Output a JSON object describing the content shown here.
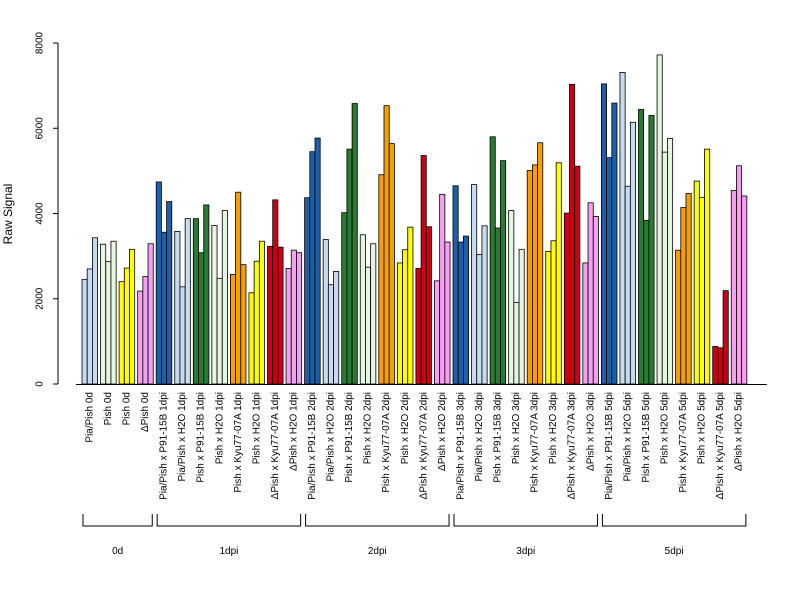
{
  "chart_data": {
    "type": "bar",
    "ylabel": "Raw Signal",
    "xlabel": "",
    "ylim": [
      0,
      8000
    ],
    "yticks": [
      0,
      2000,
      4000,
      6000,
      8000
    ],
    "grid": false,
    "categories": [
      "Pia/Pish 0d",
      "Pish 0d",
      "Pish 0d",
      "ΔPish 0d",
      "Pia/Pish x P91-15B 1dpi",
      "Pia/Pish x H2O 1dpi",
      "Pish x P91-15B 1dpi",
      "Pish x H2O 1dpi",
      "Pish x Kyu77-07A 1dpi",
      "Pish x H2O 1dpi",
      "ΔPish x Kyu77-07A 1dpi",
      "ΔPish x H2O 1dpi",
      "Pia/Pish x P91-15B 2dpi",
      "Pia/Pish x H2O 2dpi",
      "Pish x P91-15B 2dpi",
      "Pish x H2O 2dpi",
      "Pish x Kyu77-07A 2dpi",
      "Pish x H2O 2dpi",
      "ΔPish x Kyu77-07A 2dpi",
      "ΔPish x H2O 2dpi",
      "Pia/Pish x P91-15B 3dpi",
      "Pia/Pish x H2O 3dpi",
      "Pish x P91-15B 3dpi",
      "Pish x H2O 3dpi",
      "Pish x Kyu77-07A 3dpi",
      "Pish x H2O 3dpi",
      "ΔPish x Kyu77-07A 3dpi",
      "ΔPish x H2O 3dpi",
      "Pia/Pish x P91-15B 5dpi",
      "Pia/Pish x H2O 5dpi",
      "Pish x P91-15B 5dpi",
      "Pish x H2O 5dpi",
      "Pish x Kyu77-07A 5dpi",
      "Pish x H2O 5dpi",
      "ΔPish x Kyu77-07A 5dpi",
      "ΔPish x H2O 5dpi"
    ],
    "colors": [
      "#c6dbef",
      "#e5f5e0",
      "#ffff00",
      "#f4a0f0",
      "#1f5fa8",
      "#c6dbef",
      "#2a7a32",
      "#e5f5e0",
      "#f5a000",
      "#ffff00",
      "#cc0015",
      "#f4a0f0",
      "#1f5fa8",
      "#c6dbef",
      "#2a7a32",
      "#e5f5e0",
      "#f5a000",
      "#ffff00",
      "#cc0015",
      "#f4a0f0",
      "#1f5fa8",
      "#c6dbef",
      "#2a7a32",
      "#e5f5e0",
      "#f5a000",
      "#ffff00",
      "#cc0015",
      "#f4a0f0",
      "#1f5fa8",
      "#c6dbef",
      "#2a7a32",
      "#e5f5e0",
      "#f5a000",
      "#ffff00",
      "#cc0015",
      "#f4a0f0"
    ],
    "values": [
      [
        2450,
        2700,
        3430
      ],
      [
        3280,
        2870,
        3350
      ],
      [
        2400,
        2720,
        3160
      ],
      [
        2180,
        2520,
        3290
      ],
      [
        4740,
        3560,
        4280
      ],
      [
        3580,
        2280,
        3880
      ],
      [
        3880,
        3080,
        4200
      ],
      [
        3720,
        2480,
        4070
      ],
      [
        2570,
        4500,
        2800
      ],
      [
        2140,
        2880,
        3350
      ],
      [
        3230,
        4320,
        3210
      ],
      [
        2710,
        3140,
        3080
      ],
      [
        4370,
        5450,
        5770
      ],
      [
        3390,
        2330,
        2640
      ],
      [
        4020,
        5510,
        6580
      ],
      [
        3500,
        2740,
        3290
      ],
      [
        4910,
        6530,
        5640
      ],
      [
        2840,
        3150,
        3680
      ],
      [
        2710,
        5360,
        3690
      ],
      [
        2420,
        4450,
        3330
      ],
      [
        4650,
        3330,
        3470
      ],
      [
        4680,
        3040,
        3710
      ],
      [
        5800,
        3660,
        5240
      ],
      [
        4070,
        1910,
        3160
      ],
      [
        5010,
        5140,
        5660
      ],
      [
        3110,
        3360,
        5190
      ],
      [
        4010,
        7030,
        5110
      ],
      [
        2840,
        4250,
        3930
      ],
      [
        7040,
        5310,
        6590
      ],
      [
        7310,
        4640,
        6140
      ],
      [
        6440,
        3840,
        6300
      ],
      [
        7720,
        5440,
        5760
      ],
      [
        3140,
        4140,
        4470
      ],
      [
        4760,
        4380,
        5510
      ],
      [
        880,
        850,
        2190
      ],
      [
        4540,
        5120,
        4410
      ]
    ],
    "groups": [
      {
        "label": "0d",
        "start": 0,
        "end": 3
      },
      {
        "label": "1dpi",
        "start": 4,
        "end": 11
      },
      {
        "label": "2dpi",
        "start": 12,
        "end": 19
      },
      {
        "label": "3dpi",
        "start": 20,
        "end": 27
      },
      {
        "label": "5dpi",
        "start": 28,
        "end": 35
      }
    ]
  }
}
